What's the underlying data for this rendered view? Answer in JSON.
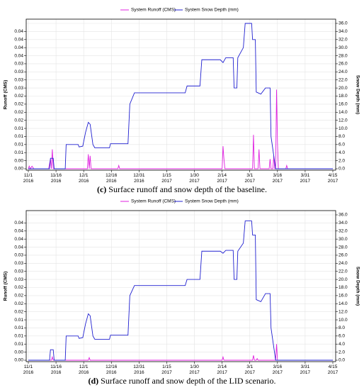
{
  "chart_data": [
    {
      "type": "line",
      "caption_label": "(c)",
      "caption": "Surface runoff and snow depth of the baseline.",
      "y_label": "Runoff (CMS)",
      "y2_label": "Snow Depth (mm)",
      "xlim": [
        0,
        165
      ],
      "xticks": [
        {
          "value": 0,
          "label": "11/1\n2016"
        },
        {
          "value": 15,
          "label": "11/16\n2016"
        },
        {
          "value": 30,
          "label": "12/1\n2016"
        },
        {
          "value": 45,
          "label": "12/16\n2016"
        },
        {
          "value": 60,
          "label": "12/31\n2016"
        },
        {
          "value": 75,
          "label": "1/15\n2017"
        },
        {
          "value": 90,
          "label": "1/30\n2017"
        },
        {
          "value": 105,
          "label": "2/14\n2017"
        },
        {
          "value": 120,
          "label": "3/1\n2017"
        },
        {
          "value": 135,
          "label": "3/16\n2017"
        },
        {
          "value": 150,
          "label": "3/31\n2017"
        },
        {
          "value": 165,
          "label": "4/15\n2017"
        }
      ],
      "ylim": [
        0,
        0.045
      ],
      "yticks": [
        {
          "value": 0,
          "label": "0.00"
        },
        {
          "value": 0.0025,
          "label": "0.00"
        },
        {
          "value": 0.005,
          "label": "0.01"
        },
        {
          "value": 0.0075,
          "label": "0.01"
        },
        {
          "value": 0.01,
          "label": "0.01"
        },
        {
          "value": 0.0125,
          "label": "0.01"
        },
        {
          "value": 0.015,
          "label": "0.02"
        },
        {
          "value": 0.0175,
          "label": "0.02"
        },
        {
          "value": 0.02,
          "label": "0.02"
        },
        {
          "value": 0.0225,
          "label": "0.02"
        },
        {
          "value": 0.025,
          "label": "0.03"
        },
        {
          "value": 0.0275,
          "label": "0.03"
        },
        {
          "value": 0.03,
          "label": "0.03"
        },
        {
          "value": 0.0325,
          "label": "0.03"
        },
        {
          "value": 0.035,
          "label": "0.04"
        },
        {
          "value": 0.0375,
          "label": "0.04"
        },
        {
          "value": 0.04,
          "label": "0.04"
        },
        {
          "value": 0.0425,
          "label": "0.04"
        }
      ],
      "y2lim": [
        0,
        36
      ],
      "y2ticks": [
        {
          "value": 0,
          "label": "0.0"
        },
        {
          "value": 2,
          "label": "2.0"
        },
        {
          "value": 4,
          "label": "4.0"
        },
        {
          "value": 6,
          "label": "6.0"
        },
        {
          "value": 8,
          "label": "8.0"
        },
        {
          "value": 10,
          "label": "10.0"
        },
        {
          "value": 12,
          "label": "12.0"
        },
        {
          "value": 14,
          "label": "14.0"
        },
        {
          "value": 16,
          "label": "16.0"
        },
        {
          "value": 18,
          "label": "18.0"
        },
        {
          "value": 20,
          "label": "20.0"
        },
        {
          "value": 22,
          "label": "22.0"
        },
        {
          "value": 24,
          "label": "24.0"
        },
        {
          "value": 26,
          "label": "26.0"
        },
        {
          "value": 28,
          "label": "28.0"
        },
        {
          "value": 30,
          "label": "30.0"
        },
        {
          "value": 32,
          "label": "32.0"
        },
        {
          "value": 34,
          "label": "34.0"
        },
        {
          "value": 36,
          "label": "36.0"
        }
      ],
      "grid": true,
      "series": [
        {
          "name": "System Runoff (CMS)",
          "color": "#e020e0",
          "x": [
            0,
            0.5,
            1,
            2,
            3,
            11,
            12,
            12.5,
            13,
            13.5,
            32,
            32.5,
            33,
            33.5,
            34,
            48.5,
            49,
            49.5,
            105,
            105.5,
            106,
            106.5,
            121.5,
            122,
            122.5,
            124.5,
            125,
            125.5,
            130.5,
            131,
            131.5,
            132.5,
            133,
            133.5,
            134,
            134.5,
            135,
            135.5,
            139.5,
            140,
            140.5,
            165
          ],
          "values": [
            0,
            0.0008,
            0,
            0.0008,
            0,
            0,
            0.003,
            0,
            0.006,
            0,
            0,
            0.0045,
            0,
            0.004,
            0,
            0,
            0.001,
            0,
            0,
            0.007,
            0.003,
            0,
            0,
            0.0105,
            0,
            0,
            0.006,
            0,
            0,
            0.003,
            0,
            0,
            0.004,
            0,
            0,
            0.0245,
            0.008,
            0,
            0,
            0.001,
            0,
            0
          ]
        },
        {
          "name": "System Snow Depth (mm)",
          "color": "#2020d0",
          "axis": "y2",
          "x": [
            0,
            11.5,
            12,
            13.5,
            14,
            20,
            20.5,
            27,
            27.5,
            29.5,
            31,
            32.5,
            33.5,
            35,
            36,
            44,
            44.5,
            54,
            55,
            57.5,
            85,
            86,
            93,
            94,
            104,
            105.5,
            107,
            111,
            111.5,
            113,
            113.5,
            116.5,
            117.5,
            121,
            121.5,
            123,
            123.5,
            126,
            128.5,
            131,
            131.5,
            134,
            165
          ],
          "values": [
            0,
            0,
            2.6,
            2.6,
            0,
            0,
            6,
            6,
            5.4,
            5.6,
            9,
            11.5,
            11,
            6,
            5.2,
            5.2,
            6.2,
            6.2,
            16,
            18.8,
            18.8,
            20.5,
            20.5,
            27,
            27,
            26.3,
            27.5,
            27.5,
            20,
            20,
            27.5,
            30,
            36,
            36,
            32,
            32,
            19,
            18.5,
            20,
            20,
            8,
            0,
            0
          ]
        }
      ]
    },
    {
      "type": "line",
      "caption_label": "(d)",
      "caption": "Surface runoff and snow depth of the LID scenario.",
      "y_label": "Runoff (CMS)",
      "y2_label": "Snow Depth (mm)",
      "xlim": [
        0,
        165
      ],
      "xticks": [
        {
          "value": 0,
          "label": "11/1\n2016"
        },
        {
          "value": 15,
          "label": "11/16\n2016"
        },
        {
          "value": 30,
          "label": "12/1\n2016"
        },
        {
          "value": 45,
          "label": "12/16\n2016"
        },
        {
          "value": 60,
          "label": "12/31\n2016"
        },
        {
          "value": 75,
          "label": "1/15\n2017"
        },
        {
          "value": 90,
          "label": "1/30\n2017"
        },
        {
          "value": 105,
          "label": "2/14\n2017"
        },
        {
          "value": 120,
          "label": "3/1\n2017"
        },
        {
          "value": 135,
          "label": "3/16\n2017"
        },
        {
          "value": 150,
          "label": "3/31\n2017"
        },
        {
          "value": 165,
          "label": "4/15\n2017"
        }
      ],
      "ylim": [
        0,
        0.045
      ],
      "yticks": [
        {
          "value": 0,
          "label": "0.00"
        },
        {
          "value": 0.0025,
          "label": "0.00"
        },
        {
          "value": 0.005,
          "label": "0.01"
        },
        {
          "value": 0.0075,
          "label": "0.01"
        },
        {
          "value": 0.01,
          "label": "0.01"
        },
        {
          "value": 0.0125,
          "label": "0.01"
        },
        {
          "value": 0.015,
          "label": "0.02"
        },
        {
          "value": 0.0175,
          "label": "0.02"
        },
        {
          "value": 0.02,
          "label": "0.02"
        },
        {
          "value": 0.0225,
          "label": "0.02"
        },
        {
          "value": 0.025,
          "label": "0.03"
        },
        {
          "value": 0.0275,
          "label": "0.03"
        },
        {
          "value": 0.03,
          "label": "0.03"
        },
        {
          "value": 0.0325,
          "label": "0.03"
        },
        {
          "value": 0.035,
          "label": "0.04"
        },
        {
          "value": 0.0375,
          "label": "0.04"
        },
        {
          "value": 0.04,
          "label": "0.04"
        },
        {
          "value": 0.0425,
          "label": "0.04"
        }
      ],
      "y2lim": [
        0,
        36
      ],
      "y2ticks": [
        {
          "value": 0,
          "label": "0.0"
        },
        {
          "value": 2,
          "label": "2.0"
        },
        {
          "value": 4,
          "label": "4.0"
        },
        {
          "value": 6,
          "label": "6.0"
        },
        {
          "value": 8,
          "label": "8.0"
        },
        {
          "value": 10,
          "label": "10.0"
        },
        {
          "value": 12,
          "label": "12.0"
        },
        {
          "value": 14,
          "label": "14.0"
        },
        {
          "value": 16,
          "label": "16.0"
        },
        {
          "value": 18,
          "label": "18.0"
        },
        {
          "value": 20,
          "label": "20.0"
        },
        {
          "value": 22,
          "label": "22.0"
        },
        {
          "value": 24,
          "label": "24.0"
        },
        {
          "value": 26,
          "label": "26.0"
        },
        {
          "value": 28,
          "label": "28.0"
        },
        {
          "value": 30,
          "label": "30.0"
        },
        {
          "value": 32,
          "label": "32.0"
        },
        {
          "value": 34,
          "label": "34.0"
        },
        {
          "value": 36,
          "label": "36.0"
        }
      ],
      "grid": true,
      "series": [
        {
          "name": "System Runoff (CMS)",
          "color": "#e020e0",
          "x": [
            0,
            12.5,
            13,
            13.5,
            32.5,
            33,
            33.5,
            105,
            105.5,
            106,
            121.5,
            122,
            122.5,
            123.5,
            124,
            124.5,
            134,
            134.5,
            135,
            165
          ],
          "values": [
            0,
            0,
            0.001,
            0,
            0,
            0.0008,
            0,
            0,
            0.001,
            0,
            0,
            0.0015,
            0,
            0,
            0.0005,
            0,
            0,
            0.005,
            0,
            0
          ]
        },
        {
          "name": "System Snow Depth (mm)",
          "color": "#2020d0",
          "axis": "y2",
          "x": [
            0,
            11.5,
            12,
            13.5,
            14,
            20,
            20.5,
            27,
            27.5,
            29.5,
            31,
            32.5,
            33.5,
            35,
            36,
            44,
            44.5,
            54,
            55,
            57.5,
            85,
            86,
            93,
            94,
            104,
            105.5,
            107,
            111,
            111.5,
            113,
            113.5,
            116.5,
            117.5,
            121,
            121.5,
            123,
            123.5,
            126,
            128.5,
            131,
            131.5,
            134,
            165
          ],
          "values": [
            0,
            0,
            2.6,
            2.6,
            0,
            0,
            6,
            6,
            5.4,
            5.6,
            9,
            11.5,
            11,
            6,
            5.2,
            5.2,
            6.2,
            6.2,
            16,
            18.5,
            18.5,
            20,
            20,
            27,
            27,
            26.5,
            27.2,
            27.2,
            20,
            20,
            27,
            29,
            34.5,
            34.5,
            31,
            31,
            15,
            14.5,
            16.5,
            16.5,
            8,
            0,
            0
          ]
        }
      ]
    }
  ]
}
